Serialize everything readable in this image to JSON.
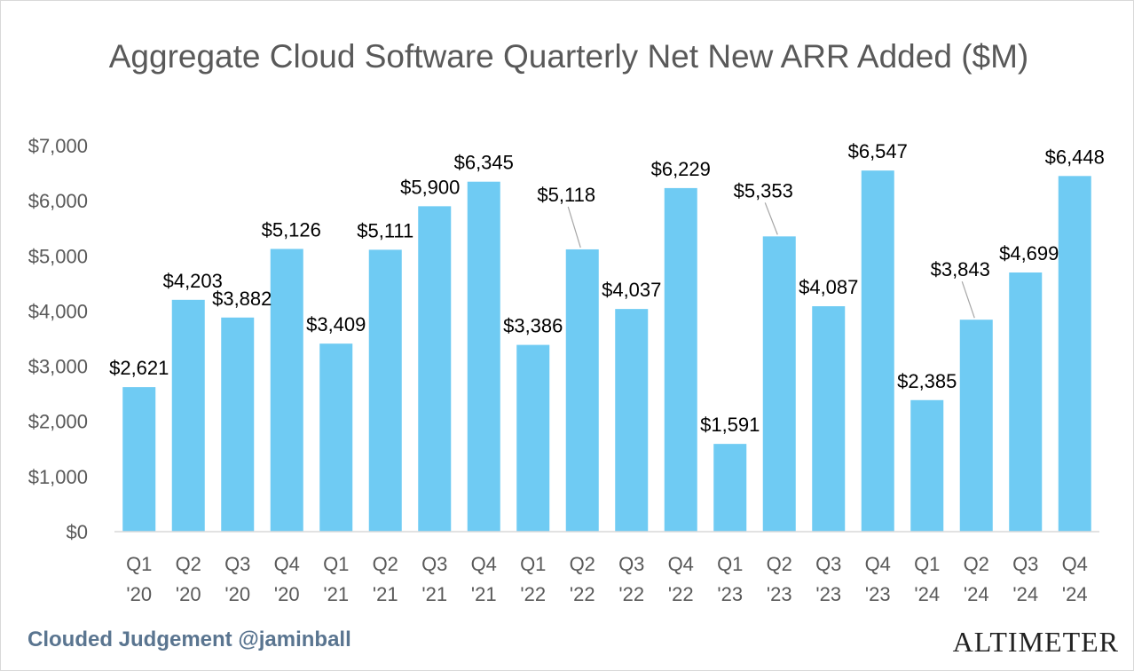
{
  "chart_data": {
    "type": "bar",
    "title": "Aggregate Cloud Software Quarterly Net New ARR Added ($M)",
    "categories": [
      [
        "Q1",
        "'20"
      ],
      [
        "Q2",
        "'20"
      ],
      [
        "Q3",
        "'20"
      ],
      [
        "Q4",
        "'20"
      ],
      [
        "Q1",
        "'21"
      ],
      [
        "Q2",
        "'21"
      ],
      [
        "Q3",
        "'21"
      ],
      [
        "Q4",
        "'21"
      ],
      [
        "Q1",
        "'22"
      ],
      [
        "Q2",
        "'22"
      ],
      [
        "Q3",
        "'22"
      ],
      [
        "Q4",
        "'22"
      ],
      [
        "Q1",
        "'23"
      ],
      [
        "Q2",
        "'23"
      ],
      [
        "Q3",
        "'23"
      ],
      [
        "Q4",
        "'23"
      ],
      [
        "Q1",
        "'24"
      ],
      [
        "Q2",
        "'24"
      ],
      [
        "Q3",
        "'24"
      ],
      [
        "Q4",
        "'24"
      ]
    ],
    "values": [
      2621,
      4203,
      3882,
      5126,
      3409,
      5111,
      5900,
      6345,
      3386,
      5118,
      4037,
      6229,
      1591,
      5353,
      4087,
      6547,
      2385,
      3843,
      4699,
      6448
    ],
    "data_labels": [
      "$2,621",
      "$4,203",
      "$3,882",
      "$5,126",
      "$3,409",
      "$5,111",
      "$5,900",
      "$6,345",
      "$3,386",
      "$5,118",
      "$4,037",
      "$6,229",
      "$1,591",
      "$5,353",
      "$4,087",
      "$6,547",
      "$2,385",
      "$3,843",
      "$4,699",
      "$6,448"
    ],
    "ylim": [
      0,
      7000
    ],
    "yticks": [
      0,
      1000,
      2000,
      3000,
      4000,
      5000,
      6000,
      7000
    ],
    "ytick_labels": [
      "$0",
      "$1,000",
      "$2,000",
      "$3,000",
      "$4,000",
      "$5,000",
      "$6,000",
      "$7,000"
    ],
    "xlabel": "",
    "ylabel": "",
    "grid": false,
    "legend": "none",
    "bar_color": "#6fcbf3"
  },
  "footer": {
    "source": "Clouded Judgement @jaminball",
    "brand": "ALTIMETER"
  }
}
